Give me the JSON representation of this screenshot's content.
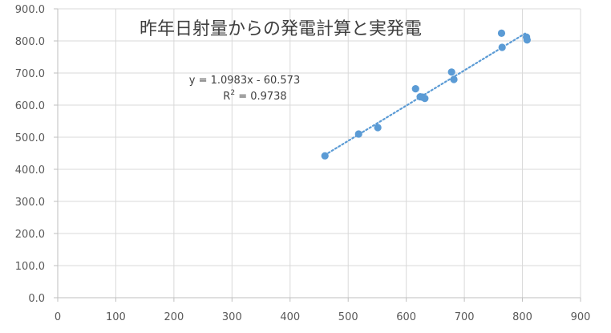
{
  "chart_data": {
    "type": "scatter",
    "title": "昨年日射量からの発電計算と実発電",
    "xlabel": "",
    "ylabel": "",
    "xlim": [
      0,
      900
    ],
    "ylim": [
      0,
      900
    ],
    "x_ticks": [
      "0",
      "100",
      "200",
      "300",
      "400",
      "500",
      "600",
      "700",
      "800",
      "900"
    ],
    "y_ticks": [
      "0.0",
      "100.0",
      "200.0",
      "300.0",
      "400.0",
      "500.0",
      "600.0",
      "700.0",
      "800.0",
      "900.0"
    ],
    "grid": true,
    "legend": "none",
    "series": [
      {
        "color": "#5b9bd5",
        "points": [
          {
            "x": 460,
            "y": 442
          },
          {
            "x": 518,
            "y": 510
          },
          {
            "x": 551,
            "y": 530
          },
          {
            "x": 616,
            "y": 651
          },
          {
            "x": 624,
            "y": 626
          },
          {
            "x": 628,
            "y": 625
          },
          {
            "x": 632,
            "y": 621
          },
          {
            "x": 678,
            "y": 703
          },
          {
            "x": 682,
            "y": 680
          },
          {
            "x": 764,
            "y": 824
          },
          {
            "x": 765,
            "y": 780
          },
          {
            "x": 807,
            "y": 812
          },
          {
            "x": 808,
            "y": 803
          }
        ]
      }
    ],
    "trendline": {
      "type": "linear",
      "slope": 1.0983,
      "intercept": -60.573,
      "x_range": [
        460,
        808
      ],
      "equation": "y = 1.0983x - 60.573",
      "r2_prefix": "R",
      "r2_sup": "2",
      "r2_value": " = 0.9738",
      "color": "#5b9bd5"
    }
  }
}
